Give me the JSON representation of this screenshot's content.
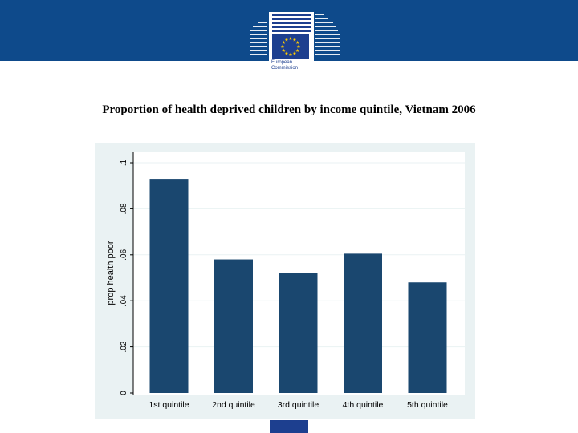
{
  "header": {
    "logo_text": "European Commission",
    "logo_line1": "European",
    "logo_line2": "Commission",
    "colors": {
      "banner": "#0e4a8b",
      "logo_blue": "#1d3f8f",
      "stars": "#ffcc00"
    }
  },
  "chart_data": {
    "type": "bar",
    "title": "Proportion of health deprived children by income quintile, Vietnam 2006",
    "categories": [
      "1st quintile",
      "2nd quintile",
      "3rd quintile",
      "4th quintile",
      "5th quintile"
    ],
    "values": [
      0.093,
      0.058,
      0.052,
      0.0605,
      0.048
    ],
    "xlabel": "",
    "ylabel": "prop health poor",
    "ylim": [
      0,
      0.1
    ],
    "yticks": [
      0,
      0.02,
      0.04,
      0.06,
      0.08,
      0.1
    ],
    "ytick_labels": [
      "0",
      ".02",
      ".04",
      ".06",
      ".08",
      ".1"
    ],
    "grid": true,
    "colors": {
      "bar": "#1a476f",
      "plot_bg": "#ffffff",
      "outer_bg": "#eaf2f3",
      "grid": "#eaf2f3"
    }
  }
}
